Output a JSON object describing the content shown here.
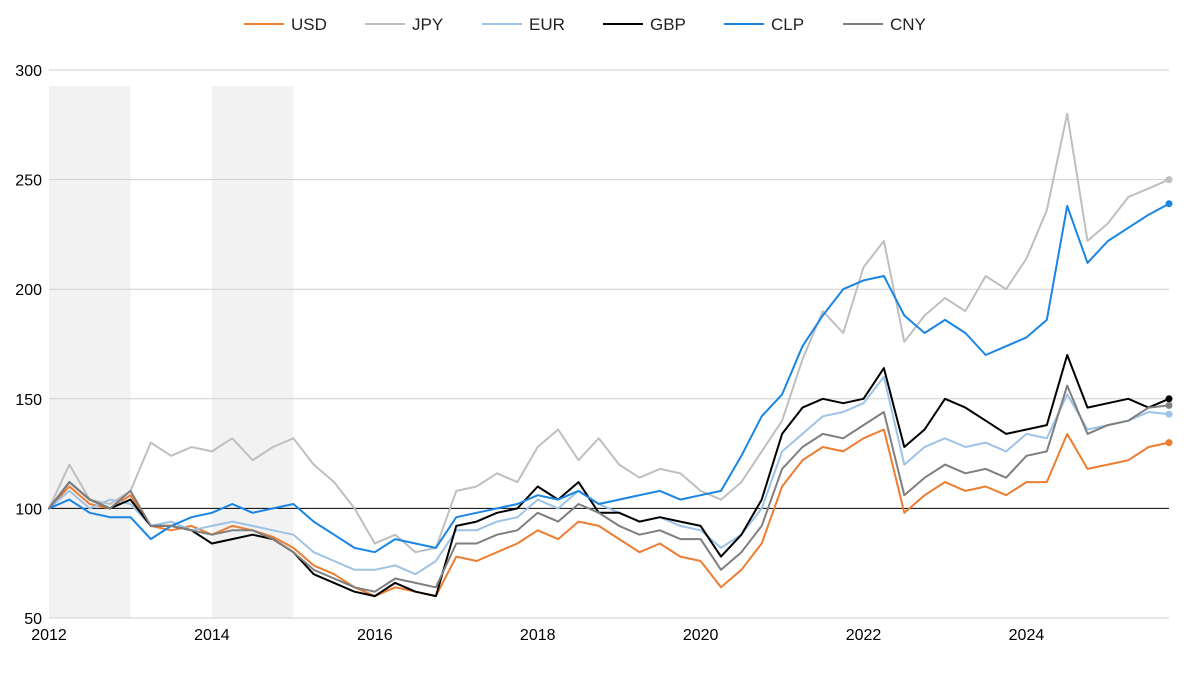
{
  "chart_data": {
    "type": "line",
    "title": "",
    "xlabel": "",
    "ylabel": "",
    "xlim": [
      2012,
      2025.75
    ],
    "ylim": [
      50,
      300
    ],
    "y_ticks": [
      50,
      100,
      150,
      200,
      250,
      300
    ],
    "x_ticks": [
      2012,
      2014,
      2016,
      2018,
      2020,
      2022,
      2024
    ],
    "x_tick_labels": [
      "2012",
      "2014",
      "2016",
      "2018",
      "2020",
      "2022",
      "2024"
    ],
    "y_tick_labels": [
      "50",
      "100",
      "150",
      "200",
      "250",
      "300"
    ],
    "reference_line": 100,
    "grid": "horizontal",
    "legend_position": "top-center",
    "shaded_periods": [
      [
        2012.0,
        2013.0
      ],
      [
        2014.0,
        2015.0
      ]
    ],
    "shade_color": "#f2f2f2",
    "series": [
      {
        "name": "USD",
        "color": "#ed7d31",
        "x": [
          2012.0,
          2012.25,
          2012.5,
          2012.75,
          2013.0,
          2013.25,
          2013.5,
          2013.75,
          2014.0,
          2014.25,
          2014.5,
          2014.75,
          2015.0,
          2015.25,
          2015.5,
          2015.75,
          2016.0,
          2016.25,
          2016.5,
          2016.75,
          2017.0,
          2017.25,
          2017.5,
          2017.75,
          2018.0,
          2018.25,
          2018.5,
          2018.75,
          2019.0,
          2019.25,
          2019.5,
          2019.75,
          2020.0,
          2020.25,
          2020.5,
          2020.75,
          2021.0,
          2021.25,
          2021.5,
          2021.75,
          2022.0,
          2022.25,
          2022.5,
          2022.75,
          2023.0,
          2023.25,
          2023.5,
          2023.75,
          2024.0,
          2024.25,
          2024.5,
          2024.75,
          2025.0,
          2025.25,
          2025.5,
          2025.75
        ],
        "values": [
          100,
          110,
          102,
          100,
          106,
          92,
          90,
          92,
          88,
          92,
          90,
          87,
          82,
          74,
          70,
          64,
          60,
          64,
          62,
          60,
          78,
          76,
          80,
          84,
          90,
          86,
          94,
          92,
          86,
          80,
          84,
          78,
          76,
          64,
          72,
          84,
          110,
          122,
          128,
          126,
          132,
          136,
          98,
          106,
          112,
          108,
          110,
          106,
          112,
          112,
          134,
          118,
          120,
          122,
          128,
          130
        ]
      },
      {
        "name": "JPY",
        "color": "#bfbfbf",
        "x": [
          2012.0,
          2012.25,
          2012.5,
          2012.75,
          2013.0,
          2013.25,
          2013.5,
          2013.75,
          2014.0,
          2014.25,
          2014.5,
          2014.75,
          2015.0,
          2015.25,
          2015.5,
          2015.75,
          2016.0,
          2016.25,
          2016.5,
          2016.75,
          2017.0,
          2017.25,
          2017.5,
          2017.75,
          2018.0,
          2018.25,
          2018.5,
          2018.75,
          2019.0,
          2019.25,
          2019.5,
          2019.75,
          2020.0,
          2020.25,
          2020.5,
          2020.75,
          2021.0,
          2021.25,
          2021.5,
          2021.75,
          2022.0,
          2022.25,
          2022.5,
          2022.75,
          2023.0,
          2023.25,
          2023.5,
          2023.75,
          2024.0,
          2024.25,
          2024.5,
          2024.75,
          2025.0,
          2025.25,
          2025.5,
          2025.75
        ],
        "values": [
          100,
          120,
          104,
          102,
          108,
          130,
          124,
          128,
          126,
          132,
          122,
          128,
          132,
          120,
          112,
          100,
          84,
          88,
          80,
          82,
          108,
          110,
          116,
          112,
          128,
          136,
          122,
          132,
          120,
          114,
          118,
          116,
          108,
          104,
          112,
          126,
          140,
          168,
          190,
          180,
          210,
          222,
          176,
          188,
          196,
          190,
          206,
          200,
          214,
          236,
          280,
          222,
          230,
          242,
          246,
          250
        ]
      },
      {
        "name": "EUR",
        "color": "#9dc3e6",
        "x": [
          2012.0,
          2012.25,
          2012.5,
          2012.75,
          2013.0,
          2013.25,
          2013.5,
          2013.75,
          2014.0,
          2014.25,
          2014.5,
          2014.75,
          2015.0,
          2015.25,
          2015.5,
          2015.75,
          2016.0,
          2016.25,
          2016.5,
          2016.75,
          2017.0,
          2017.25,
          2017.5,
          2017.75,
          2018.0,
          2018.25,
          2018.5,
          2018.75,
          2019.0,
          2019.25,
          2019.5,
          2019.75,
          2020.0,
          2020.25,
          2020.5,
          2020.75,
          2021.0,
          2021.25,
          2021.5,
          2021.75,
          2022.0,
          2022.25,
          2022.5,
          2022.75,
          2023.0,
          2023.25,
          2023.5,
          2023.75,
          2024.0,
          2024.25,
          2024.5,
          2024.75,
          2025.0,
          2025.25,
          2025.5,
          2025.75
        ],
        "values": [
          100,
          108,
          100,
          104,
          102,
          92,
          94,
          90,
          92,
          94,
          92,
          90,
          88,
          80,
          76,
          72,
          72,
          74,
          70,
          76,
          90,
          90,
          94,
          96,
          104,
          100,
          108,
          102,
          98,
          94,
          96,
          92,
          90,
          82,
          88,
          100,
          126,
          134,
          142,
          144,
          148,
          160,
          120,
          128,
          132,
          128,
          130,
          126,
          134,
          132,
          152,
          136,
          138,
          140,
          144,
          143
        ]
      },
      {
        "name": "GBP",
        "color": "#000000",
        "x": [
          2012.0,
          2012.25,
          2012.5,
          2012.75,
          2013.0,
          2013.25,
          2013.5,
          2013.75,
          2014.0,
          2014.25,
          2014.5,
          2014.75,
          2015.0,
          2015.25,
          2015.5,
          2015.75,
          2016.0,
          2016.25,
          2016.5,
          2016.75,
          2017.0,
          2017.25,
          2017.5,
          2017.75,
          2018.0,
          2018.25,
          2018.5,
          2018.75,
          2019.0,
          2019.25,
          2019.5,
          2019.75,
          2020.0,
          2020.25,
          2020.5,
          2020.75,
          2021.0,
          2021.25,
          2021.5,
          2021.75,
          2022.0,
          2022.25,
          2022.5,
          2022.75,
          2023.0,
          2023.25,
          2023.5,
          2023.75,
          2024.0,
          2024.25,
          2024.5,
          2024.75,
          2025.0,
          2025.25,
          2025.5,
          2025.75
        ],
        "values": [
          100,
          112,
          104,
          100,
          104,
          92,
          92,
          90,
          84,
          86,
          88,
          86,
          80,
          70,
          66,
          62,
          60,
          66,
          62,
          60,
          92,
          94,
          98,
          100,
          110,
          104,
          112,
          98,
          98,
          94,
          96,
          94,
          92,
          78,
          88,
          104,
          134,
          146,
          150,
          148,
          150,
          164,
          128,
          136,
          150,
          146,
          140,
          134,
          136,
          138,
          170,
          146,
          148,
          150,
          146,
          150
        ]
      },
      {
        "name": "CLP",
        "color": "#1a85e3",
        "x": [
          2012.0,
          2012.25,
          2012.5,
          2012.75,
          2013.0,
          2013.25,
          2013.5,
          2013.75,
          2014.0,
          2014.25,
          2014.5,
          2014.75,
          2015.0,
          2015.25,
          2015.5,
          2015.75,
          2016.0,
          2016.25,
          2016.5,
          2016.75,
          2017.0,
          2017.25,
          2017.5,
          2017.75,
          2018.0,
          2018.25,
          2018.5,
          2018.75,
          2019.0,
          2019.25,
          2019.5,
          2019.75,
          2020.0,
          2020.25,
          2020.5,
          2020.75,
          2021.0,
          2021.25,
          2021.5,
          2021.75,
          2022.0,
          2022.25,
          2022.5,
          2022.75,
          2023.0,
          2023.25,
          2023.5,
          2023.75,
          2024.0,
          2024.25,
          2024.5,
          2024.75,
          2025.0,
          2025.25,
          2025.5,
          2025.75
        ],
        "values": [
          100,
          104,
          98,
          96,
          96,
          86,
          92,
          96,
          98,
          102,
          98,
          100,
          102,
          94,
          88,
          82,
          80,
          86,
          84,
          82,
          96,
          98,
          100,
          102,
          106,
          104,
          108,
          102,
          104,
          106,
          108,
          104,
          106,
          108,
          124,
          142,
          152,
          174,
          188,
          200,
          204,
          206,
          188,
          180,
          186,
          180,
          170,
          174,
          178,
          186,
          238,
          212,
          222,
          228,
          234,
          239
        ]
      },
      {
        "name": "CNY",
        "color": "#7f7f7f",
        "x": [
          2012.0,
          2012.25,
          2012.5,
          2012.75,
          2013.0,
          2013.25,
          2013.5,
          2013.75,
          2014.0,
          2014.25,
          2014.5,
          2014.75,
          2015.0,
          2015.25,
          2015.5,
          2015.75,
          2016.0,
          2016.25,
          2016.5,
          2016.75,
          2017.0,
          2017.25,
          2017.5,
          2017.75,
          2018.0,
          2018.25,
          2018.5,
          2018.75,
          2019.0,
          2019.25,
          2019.5,
          2019.75,
          2020.0,
          2020.25,
          2020.5,
          2020.75,
          2021.0,
          2021.25,
          2021.5,
          2021.75,
          2022.0,
          2022.25,
          2022.5,
          2022.75,
          2023.0,
          2023.25,
          2023.5,
          2023.75,
          2024.0,
          2024.25,
          2024.5,
          2024.75,
          2025.0,
          2025.25,
          2025.5,
          2025.75
        ],
        "values": [
          100,
          112,
          104,
          100,
          108,
          92,
          92,
          90,
          88,
          90,
          90,
          86,
          80,
          72,
          68,
          64,
          62,
          68,
          66,
          64,
          84,
          84,
          88,
          90,
          98,
          94,
          102,
          98,
          92,
          88,
          90,
          86,
          86,
          72,
          80,
          92,
          118,
          128,
          134,
          132,
          138,
          144,
          106,
          114,
          120,
          116,
          118,
          114,
          124,
          126,
          156,
          134,
          138,
          140,
          146,
          147
        ]
      }
    ]
  }
}
